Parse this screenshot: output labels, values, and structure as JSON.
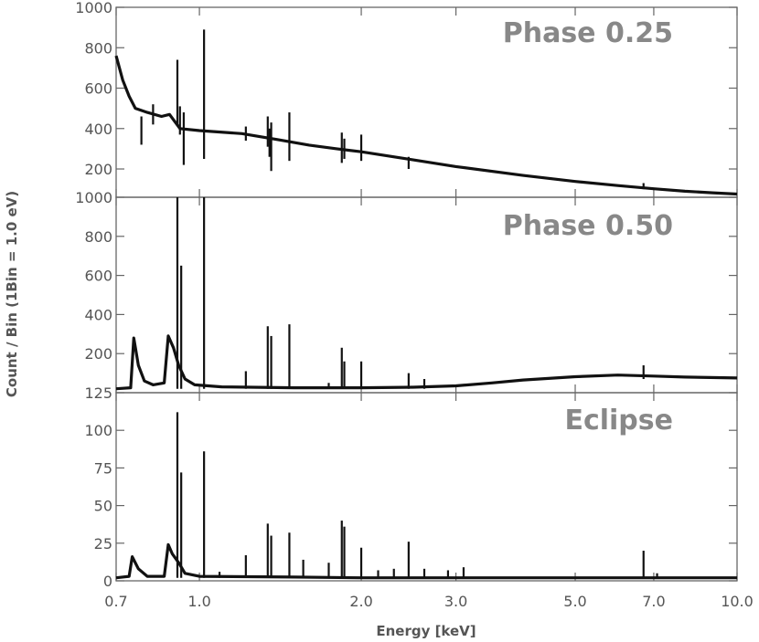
{
  "colors": {
    "spectrum": "#111111",
    "frame": "#666666",
    "panel_label": "#888888",
    "tick_text": "#555555"
  },
  "chart_data": {
    "type": "line",
    "xlabel": "Energy [keV]",
    "ylabel": "Count / Bin (1Bin = 1.0 eV)",
    "x_scale": "log",
    "xlim": [
      0.7,
      10.0
    ],
    "x_ticks": [
      0.7,
      1.0,
      2.0,
      3.0,
      5.0,
      7.0,
      10.0
    ],
    "x_tick_labels": [
      "0.7",
      "1.0",
      "2.0",
      "3.0",
      "5.0",
      "7.0",
      "10.0"
    ],
    "grid": false,
    "panels": [
      {
        "label": "Phase 0.25",
        "ylim": [
          60,
          1000
        ],
        "y_ticks": [
          200,
          400,
          600,
          800,
          1000
        ],
        "y_tick_labels": [
          "200",
          "400",
          "600",
          "800",
          "1000"
        ],
        "continuum": [
          [
            0.7,
            760
          ],
          [
            0.72,
            640
          ],
          [
            0.74,
            560
          ],
          [
            0.76,
            500
          ],
          [
            0.8,
            480
          ],
          [
            0.85,
            460
          ],
          [
            0.88,
            470
          ],
          [
            0.92,
            400
          ],
          [
            1.0,
            390
          ],
          [
            1.2,
            375
          ],
          [
            1.4,
            345
          ],
          [
            1.6,
            318
          ],
          [
            1.8,
            300
          ],
          [
            2.0,
            285
          ],
          [
            2.5,
            245
          ],
          [
            3.0,
            212
          ],
          [
            4.0,
            168
          ],
          [
            5.0,
            138
          ],
          [
            6.0,
            118
          ],
          [
            7.0,
            102
          ],
          [
            8.0,
            90
          ],
          [
            9.0,
            82
          ],
          [
            10.0,
            76
          ]
        ],
        "lines": [
          [
            0.78,
            320,
            460
          ],
          [
            0.82,
            420,
            520
          ],
          [
            0.91,
            420,
            740
          ],
          [
            0.92,
            370,
            510
          ],
          [
            0.935,
            220,
            480
          ],
          [
            1.02,
            250,
            890
          ],
          [
            1.22,
            340,
            410
          ],
          [
            1.34,
            310,
            460
          ],
          [
            1.35,
            260,
            400
          ],
          [
            1.36,
            190,
            430
          ],
          [
            1.47,
            240,
            480
          ],
          [
            1.84,
            230,
            380
          ],
          [
            1.86,
            250,
            350
          ],
          [
            2.0,
            240,
            370
          ],
          [
            2.45,
            200,
            260
          ],
          [
            6.7,
            100,
            130
          ]
        ]
      },
      {
        "label": "Phase 0.50",
        "ylim": [
          0,
          1000
        ],
        "y_ticks": [
          200,
          400,
          600,
          800,
          1000
        ],
        "y_tick_labels": [
          "200",
          "400",
          "600",
          "800",
          "1000"
        ],
        "continuum": [
          [
            0.7,
            20
          ],
          [
            0.745,
            25
          ],
          [
            0.755,
            280
          ],
          [
            0.77,
            140
          ],
          [
            0.79,
            60
          ],
          [
            0.82,
            40
          ],
          [
            0.86,
            50
          ],
          [
            0.875,
            290
          ],
          [
            0.895,
            230
          ],
          [
            0.915,
            140
          ],
          [
            0.94,
            70
          ],
          [
            0.98,
            40
          ],
          [
            1.1,
            30
          ],
          [
            1.5,
            25
          ],
          [
            2.0,
            25
          ],
          [
            2.5,
            28
          ],
          [
            3.0,
            35
          ],
          [
            3.5,
            50
          ],
          [
            4.0,
            65
          ],
          [
            5.0,
            82
          ],
          [
            6.0,
            90
          ],
          [
            7.0,
            85
          ],
          [
            8.0,
            80
          ],
          [
            10.0,
            75
          ]
        ],
        "lines": [
          [
            0.91,
            20,
            1000
          ],
          [
            0.925,
            20,
            650
          ],
          [
            1.02,
            20,
            1000
          ],
          [
            1.22,
            20,
            110
          ],
          [
            1.34,
            20,
            340
          ],
          [
            1.36,
            20,
            290
          ],
          [
            1.47,
            20,
            350
          ],
          [
            1.74,
            20,
            50
          ],
          [
            1.84,
            20,
            230
          ],
          [
            1.86,
            20,
            160
          ],
          [
            2.0,
            20,
            160
          ],
          [
            2.45,
            20,
            100
          ],
          [
            2.62,
            20,
            70
          ],
          [
            6.7,
            70,
            140
          ]
        ]
      },
      {
        "label": "Eclipse",
        "ylim": [
          0,
          125
        ],
        "y_ticks": [
          0,
          25,
          50,
          75,
          100,
          125
        ],
        "y_tick_labels": [
          "0",
          "25",
          "50",
          "75",
          "100",
          "125"
        ],
        "continuum": [
          [
            0.7,
            2
          ],
          [
            0.74,
            3
          ],
          [
            0.75,
            16
          ],
          [
            0.77,
            8
          ],
          [
            0.8,
            3
          ],
          [
            0.86,
            3
          ],
          [
            0.875,
            24
          ],
          [
            0.89,
            18
          ],
          [
            0.915,
            12
          ],
          [
            0.94,
            5
          ],
          [
            1.0,
            3
          ],
          [
            1.5,
            2.5
          ],
          [
            2.0,
            2
          ],
          [
            3.0,
            2
          ],
          [
            5.0,
            2
          ],
          [
            7.0,
            2
          ],
          [
            10.0,
            2
          ]
        ],
        "lines": [
          [
            0.91,
            2,
            112
          ],
          [
            0.925,
            2,
            72
          ],
          [
            1.02,
            2,
            86
          ],
          [
            1.09,
            2,
            6
          ],
          [
            1.22,
            2,
            17
          ],
          [
            1.34,
            2,
            38
          ],
          [
            1.36,
            2,
            30
          ],
          [
            1.47,
            2,
            32
          ],
          [
            1.56,
            2,
            14
          ],
          [
            1.74,
            2,
            12
          ],
          [
            1.84,
            2,
            40
          ],
          [
            1.86,
            2,
            36
          ],
          [
            2.0,
            2,
            22
          ],
          [
            2.15,
            2,
            7
          ],
          [
            2.3,
            2,
            8
          ],
          [
            2.45,
            2,
            26
          ],
          [
            2.62,
            2,
            8
          ],
          [
            2.9,
            2,
            7
          ],
          [
            3.1,
            2,
            9
          ],
          [
            6.7,
            2,
            20
          ],
          [
            7.1,
            2,
            5
          ]
        ]
      }
    ]
  }
}
